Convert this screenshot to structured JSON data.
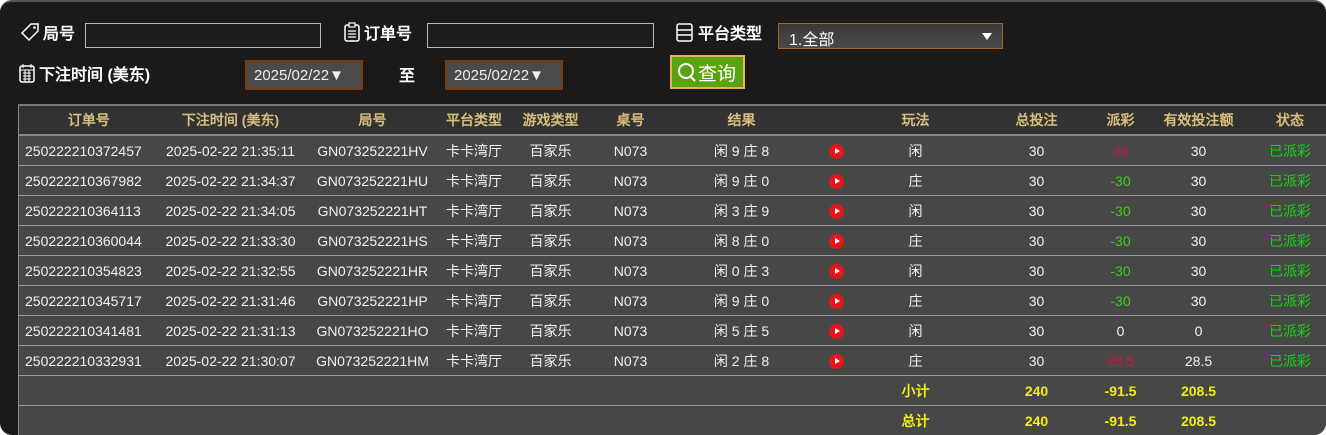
{
  "filters": {
    "round_label": "局号",
    "round_value": "",
    "order_label": "订单号",
    "order_value": "",
    "platform_label": "平台类型",
    "platform_value": "1.全部",
    "time_label": "下注时间 (美东)",
    "date_from": "2025/02/22▼",
    "to_label": "至",
    "date_to": "2025/02/22▼",
    "query_label": "查询"
  },
  "table": {
    "headers": [
      "订单号",
      "下注时间 (美东)",
      "局号",
      "平台类型",
      "游戏类型",
      "桌号",
      "结果",
      "",
      "玩法",
      "总投注",
      "派彩",
      "有效投注额",
      "状态"
    ],
    "rows": [
      {
        "order": "250222210372457",
        "time": "2025-02-22 21:35:11",
        "round": "GN073252221HV",
        "platform": "卡卡湾厅",
        "game": "百家乐",
        "table": "N073",
        "result": "闲 9 庄 8",
        "play": "闲",
        "bet": "30",
        "payout": "30",
        "payout_color": "red",
        "valid": "30",
        "status": "已派彩"
      },
      {
        "order": "250222210367982",
        "time": "2025-02-22 21:34:37",
        "round": "GN073252221HU",
        "platform": "卡卡湾厅",
        "game": "百家乐",
        "table": "N073",
        "result": "闲 9 庄 0",
        "play": "庄",
        "bet": "30",
        "payout": "-30",
        "payout_color": "green",
        "valid": "30",
        "status": "已派彩"
      },
      {
        "order": "250222210364113",
        "time": "2025-02-22 21:34:05",
        "round": "GN073252221HT",
        "platform": "卡卡湾厅",
        "game": "百家乐",
        "table": "N073",
        "result": "闲 3 庄 9",
        "play": "闲",
        "bet": "30",
        "payout": "-30",
        "payout_color": "green",
        "valid": "30",
        "status": "已派彩"
      },
      {
        "order": "250222210360044",
        "time": "2025-02-22 21:33:30",
        "round": "GN073252221HS",
        "platform": "卡卡湾厅",
        "game": "百家乐",
        "table": "N073",
        "result": "闲 8 庄 0",
        "play": "庄",
        "bet": "30",
        "payout": "-30",
        "payout_color": "green",
        "valid": "30",
        "status": "已派彩"
      },
      {
        "order": "250222210354823",
        "time": "2025-02-22 21:32:55",
        "round": "GN073252221HR",
        "platform": "卡卡湾厅",
        "game": "百家乐",
        "table": "N073",
        "result": "闲 0 庄 3",
        "play": "闲",
        "bet": "30",
        "payout": "-30",
        "payout_color": "green",
        "valid": "30",
        "status": "已派彩"
      },
      {
        "order": "250222210345717",
        "time": "2025-02-22 21:31:46",
        "round": "GN073252221HP",
        "platform": "卡卡湾厅",
        "game": "百家乐",
        "table": "N073",
        "result": "闲 9 庄 0",
        "play": "庄",
        "bet": "30",
        "payout": "-30",
        "payout_color": "green",
        "valid": "30",
        "status": "已派彩"
      },
      {
        "order": "250222210341481",
        "time": "2025-02-22 21:31:13",
        "round": "GN073252221HO",
        "platform": "卡卡湾厅",
        "game": "百家乐",
        "table": "N073",
        "result": "闲 5 庄 5",
        "play": "闲",
        "bet": "30",
        "payout": "0",
        "payout_color": "white",
        "valid": "0",
        "status": "已派彩"
      },
      {
        "order": "250222210332931",
        "time": "2025-02-22 21:30:07",
        "round": "GN073252221HM",
        "platform": "卡卡湾厅",
        "game": "百家乐",
        "table": "N073",
        "result": "闲 2 庄 8",
        "play": "庄",
        "bet": "30",
        "payout": "28.5",
        "payout_color": "red",
        "valid": "28.5",
        "status": "已派彩"
      }
    ],
    "subtotal": {
      "label": "小计",
      "bet": "240",
      "payout": "-91.5",
      "valid": "208.5"
    },
    "total": {
      "label": "总计",
      "bet": "240",
      "payout": "-91.5",
      "valid": "208.5"
    }
  },
  "colors": {
    "header_text": "#d8bf7c",
    "payout_positive": "#c8173a",
    "payout_negative": "#3fce12",
    "status": "#13d613",
    "summary": "#f4ee10",
    "query_button": "#59a311"
  }
}
